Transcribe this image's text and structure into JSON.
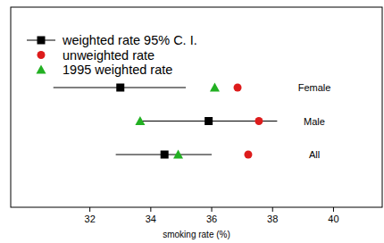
{
  "chart_data": {
    "type": "dot",
    "orientation": "horizontal",
    "xlabel": "smoking rate (%)",
    "categories": [
      "Female",
      "Male",
      "All"
    ],
    "xlim": [
      29.4,
      41.6
    ],
    "xticks": [
      32,
      34,
      36,
      38,
      40
    ],
    "legend": "upper left",
    "series": [
      {
        "name": "weighted rate 95% C. I.",
        "color": "#000000",
        "marker": "square",
        "values": [
          33.0,
          35.9,
          34.45
        ],
        "ci_low": [
          30.8,
          33.65,
          32.85
        ],
        "ci_high": [
          35.15,
          38.15,
          36.0
        ]
      },
      {
        "name": "unweighted rate",
        "color": "#dd1c1c",
        "marker": "circle",
        "values": [
          36.85,
          37.55,
          37.2
        ]
      },
      {
        "name": "1995 weighted rate",
        "color": "#22b022",
        "marker": "triangle",
        "values": [
          36.1,
          33.65,
          34.9
        ]
      }
    ]
  }
}
